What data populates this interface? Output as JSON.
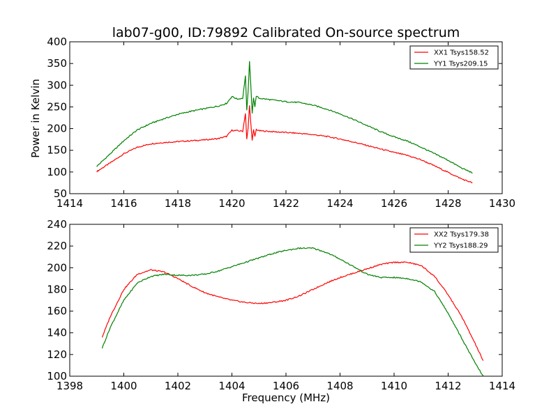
{
  "chart_data": [
    {
      "type": "line",
      "title": "lab07-g00, ID:79892 Calibrated On-source spectrum",
      "xlabel": "",
      "ylabel": "Power in Kelvin",
      "xlim": [
        1414,
        1430
      ],
      "ylim": [
        50,
        400
      ],
      "xticks": [
        "1414",
        "1416",
        "1418",
        "1420",
        "1422",
        "1424",
        "1426",
        "1428",
        "1430"
      ],
      "yticks": [
        "50",
        "100",
        "150",
        "200",
        "250",
        "300",
        "350",
        "400"
      ],
      "legend_position": "top-right",
      "grid": false,
      "series": [
        {
          "name": "XX1 Tsys158.52",
          "color": "#ff0000",
          "x": [
            1415.0,
            1415.5,
            1416.0,
            1416.5,
            1417.0,
            1417.5,
            1418.0,
            1418.5,
            1419.0,
            1419.5,
            1419.8,
            1420.0,
            1420.2,
            1420.4,
            1420.5,
            1420.55,
            1420.6,
            1420.65,
            1420.7,
            1420.75,
            1420.8,
            1420.85,
            1420.9,
            1421.0,
            1421.5,
            1422.0,
            1422.5,
            1423.0,
            1423.5,
            1424.0,
            1424.5,
            1425.0,
            1425.5,
            1426.0,
            1426.5,
            1427.0,
            1427.5,
            1428.0,
            1428.5,
            1428.9
          ],
          "y": [
            101,
            121,
            142,
            157,
            165,
            168,
            170,
            172,
            174,
            177,
            182,
            196,
            195,
            194,
            235,
            175,
            201,
            253,
            213,
            172,
            197,
            181,
            198,
            195,
            193,
            191,
            189,
            186,
            182,
            176,
            169,
            161,
            153,
            145,
            138,
            128,
            114,
            99,
            84,
            75
          ]
        },
        {
          "name": "YY1 Tsys209.15",
          "color": "#008000",
          "x": [
            1415.0,
            1415.5,
            1416.0,
            1416.5,
            1417.0,
            1417.5,
            1418.0,
            1418.5,
            1419.0,
            1419.5,
            1419.8,
            1420.0,
            1420.2,
            1420.4,
            1420.5,
            1420.55,
            1420.6,
            1420.65,
            1420.7,
            1420.75,
            1420.8,
            1420.85,
            1420.9,
            1421.0,
            1421.5,
            1422.0,
            1422.5,
            1423.0,
            1423.5,
            1424.0,
            1424.5,
            1425.0,
            1425.5,
            1426.0,
            1426.5,
            1427.0,
            1427.5,
            1428.0,
            1428.5,
            1428.9
          ],
          "y": [
            113,
            142,
            172,
            197,
            212,
            223,
            233,
            240,
            246,
            252,
            258,
            274,
            268,
            270,
            322,
            241,
            285,
            354,
            298,
            236,
            272,
            250,
            275,
            270,
            266,
            262,
            260,
            254,
            245,
            234,
            221,
            207,
            193,
            181,
            171,
            157,
            142,
            127,
            109,
            98
          ]
        }
      ]
    },
    {
      "type": "line",
      "title": "",
      "xlabel": "Frequency (MHz)",
      "ylabel": "",
      "xlim": [
        1398,
        1414
      ],
      "ylim": [
        100,
        240
      ],
      "xticks": [
        "1398",
        "1400",
        "1402",
        "1404",
        "1406",
        "1408",
        "1410",
        "1412",
        "1414"
      ],
      "yticks": [
        "100",
        "120",
        "140",
        "160",
        "180",
        "200",
        "220",
        "240"
      ],
      "legend_position": "top-right",
      "grid": false,
      "series": [
        {
          "name": "XX2 Tsys179.38",
          "color": "#ff0000",
          "x": [
            1399.2,
            1399.5,
            1400.0,
            1400.5,
            1401.0,
            1401.5,
            1402.0,
            1402.5,
            1403.0,
            1403.5,
            1404.0,
            1404.5,
            1405.0,
            1405.5,
            1406.0,
            1406.5,
            1407.0,
            1407.5,
            1408.0,
            1408.5,
            1409.0,
            1409.5,
            1410.0,
            1410.5,
            1411.0,
            1411.5,
            1412.0,
            1412.5,
            1413.0,
            1413.3
          ],
          "y": [
            136,
            155,
            180,
            194,
            198,
            196,
            190,
            183,
            177,
            173,
            170,
            168,
            167,
            168,
            170,
            174,
            180,
            186,
            191,
            195,
            199,
            203,
            205,
            205,
            202,
            192,
            175,
            155,
            130,
            114
          ]
        },
        {
          "name": "YY2 Tsys188.29",
          "color": "#008000",
          "x": [
            1399.2,
            1399.5,
            1400.0,
            1400.5,
            1401.0,
            1401.5,
            1402.0,
            1402.5,
            1403.0,
            1403.5,
            1404.0,
            1404.5,
            1405.0,
            1405.5,
            1406.0,
            1406.5,
            1407.0,
            1407.5,
            1408.0,
            1408.5,
            1409.0,
            1409.5,
            1410.0,
            1410.5,
            1411.0,
            1411.5,
            1412.0,
            1412.5,
            1413.0,
            1413.3
          ],
          "y": [
            126,
            145,
            170,
            186,
            192,
            194,
            193,
            193,
            194,
            197,
            201,
            205,
            209,
            213,
            216,
            218,
            218,
            214,
            208,
            201,
            194,
            191,
            191,
            190,
            187,
            178,
            158,
            135,
            112,
            100
          ]
        }
      ]
    }
  ]
}
